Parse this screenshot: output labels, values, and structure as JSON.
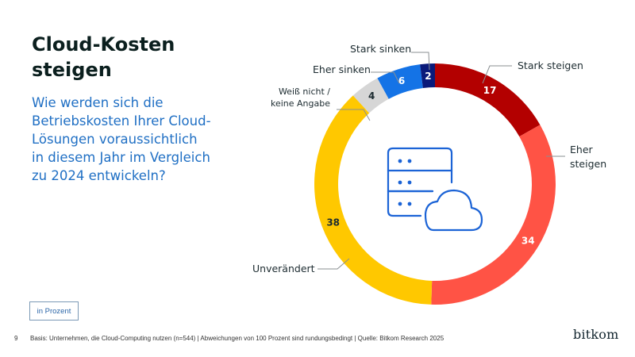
{
  "slide": {
    "title_line1": "Cloud-Kosten",
    "title_line2": "steigen",
    "question": "Wie werden sich die Betriebskosten Ihrer Cloud-Lösungen voraussichtlich in diesem Jahr im Vergleich zu 2024 entwickeln?",
    "question_lines": [
      "Wie werden sich die",
      "Betriebskosten Ihrer Cloud-",
      "Lösungen voraussichtlich",
      "in diesem Jahr im Vergleich",
      "zu 2024 entwickeln?"
    ],
    "unit_label": "in Prozent",
    "page_number": "9",
    "footnote": "Basis: Unternehmen, die Cloud-Computing nutzen (n=544) | Abweichungen von 100 Prozent sind rundungsbedingt  | Quelle: Bitkom Research 2025",
    "logo": "bitkom",
    "center_icon": "server-cloud-icon"
  },
  "chart_data": {
    "type": "pie",
    "variant": "donut",
    "title": "Cloud-Kosten steigen",
    "subtitle": "Wie werden sich die Betriebskosten Ihrer Cloud-Lösungen voraussichtlich in diesem Jahr im Vergleich zu 2024 entwickeln?",
    "unit": "in Prozent",
    "start_angle": "12 o'clock, clockwise",
    "categories": [
      "Stark steigen",
      "Eher steigen",
      "Unverändert",
      "Weiß nicht / keine Angabe",
      "Eher sinken",
      "Stark sinken"
    ],
    "values": [
      17,
      34,
      38,
      4,
      6,
      2
    ],
    "colors": [
      "#b30000",
      "#ff5345",
      "#ffc800",
      "#d6d6d6",
      "#1473e6",
      "#0a1a7a"
    ],
    "label_colors": [
      "#ffffff",
      "#ffffff",
      "#1c2b30",
      "#1c2b30",
      "#ffffff",
      "#ffffff"
    ],
    "legend_position": "callout labels",
    "grid": false
  }
}
